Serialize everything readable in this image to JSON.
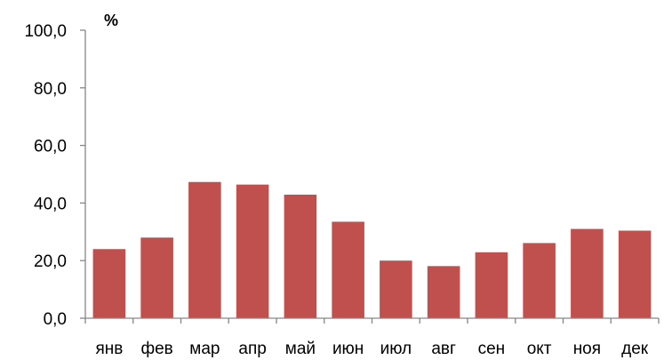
{
  "chart_data": {
    "type": "bar",
    "categories": [
      "янв",
      "фев",
      "мар",
      "апр",
      "май",
      "июн",
      "июл",
      "авг",
      "сен",
      "окт",
      "ноя",
      "дек"
    ],
    "values": [
      24.0,
      28.0,
      47.3,
      46.4,
      42.9,
      33.5,
      20.0,
      18.1,
      22.9,
      26.1,
      31.0,
      30.4
    ],
    "ylim": [
      0,
      100
    ],
    "yticks": [
      "0,0",
      "20,0",
      "40,0",
      "60,0",
      "80,0",
      "100,0"
    ],
    "ylabel": "%",
    "xlabel": "",
    "title": "",
    "grid": false,
    "bar_color": "#C0504D",
    "axis_color": "#868686"
  }
}
